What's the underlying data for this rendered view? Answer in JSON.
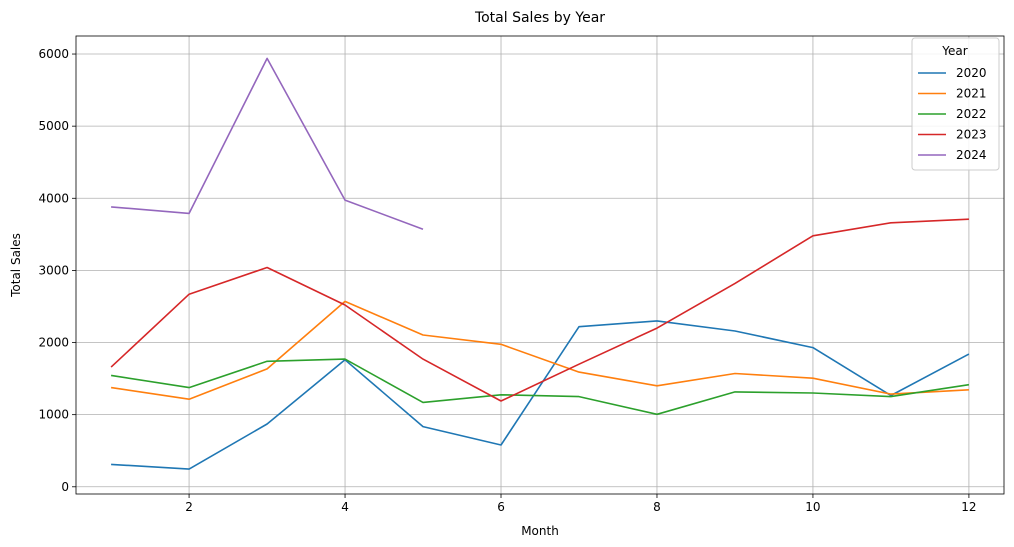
{
  "chart_data": {
    "type": "line",
    "title": "Total Sales by Year",
    "xlabel": "Month",
    "ylabel": "Total Sales",
    "xlim": [
      0.55,
      12.45
    ],
    "ylim": [
      -100,
      6250
    ],
    "xticks": [
      2,
      4,
      6,
      8,
      10,
      12
    ],
    "yticks": [
      0,
      1000,
      2000,
      3000,
      4000,
      5000,
      6000
    ],
    "grid": true,
    "legend": {
      "title": "Year",
      "placement": "top-right"
    },
    "series": [
      {
        "name": "2020",
        "color": "#1f77b4",
        "x": [
          1,
          2,
          3,
          4,
          5,
          6,
          7,
          8,
          9,
          10,
          11,
          12
        ],
        "values": [
          310,
          245,
          870,
          1760,
          835,
          580,
          2220,
          2300,
          2160,
          1930,
          1265,
          1840
        ]
      },
      {
        "name": "2021",
        "color": "#ff7f0e",
        "x": [
          1,
          2,
          3,
          4,
          5,
          6,
          7,
          8,
          9,
          10,
          11,
          12
        ],
        "values": [
          1375,
          1215,
          1635,
          2570,
          2105,
          1975,
          1590,
          1400,
          1570,
          1505,
          1285,
          1345
        ]
      },
      {
        "name": "2022",
        "color": "#2ca02c",
        "x": [
          1,
          2,
          3,
          4,
          5,
          6,
          7,
          8,
          9,
          10,
          11,
          12
        ],
        "values": [
          1545,
          1375,
          1740,
          1770,
          1170,
          1275,
          1250,
          1005,
          1315,
          1300,
          1250,
          1415
        ]
      },
      {
        "name": "2023",
        "color": "#d62728",
        "x": [
          1,
          2,
          3,
          4,
          5,
          6,
          7,
          8,
          9,
          10,
          11,
          12
        ],
        "values": [
          1660,
          2670,
          3040,
          2520,
          1770,
          1190,
          1700,
          2200,
          2820,
          3480,
          3660,
          3710
        ]
      },
      {
        "name": "2024",
        "color": "#9467bd",
        "x": [
          1,
          2,
          3,
          4,
          5
        ],
        "values": [
          3880,
          3790,
          5940,
          3975,
          3570
        ]
      }
    ]
  }
}
